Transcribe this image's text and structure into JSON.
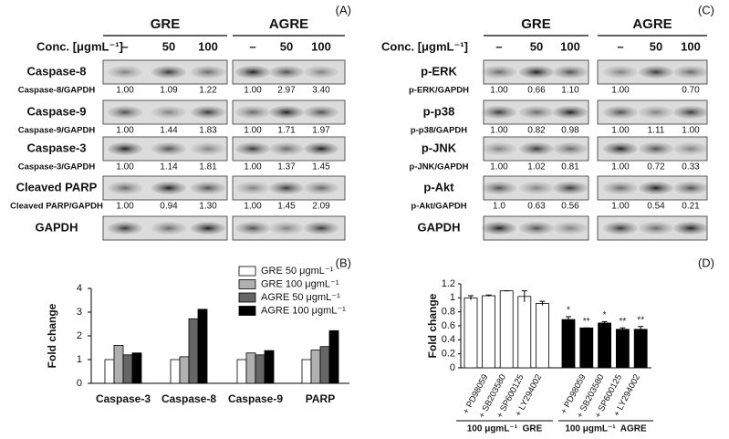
{
  "blots": [
    {
      "panel_label": "(A)",
      "groups": [
        "GRE",
        "AGRE"
      ],
      "conc_label": "Conc. [μgmL⁻¹]",
      "columns": [
        "–",
        "50",
        "100",
        "–",
        "50",
        "100"
      ],
      "rows": [
        {
          "label": "Caspase-8",
          "ratio_label": "Caspase-8/GAPDH",
          "ratios": [
            "1.00",
            "1.09",
            "1.22",
            "1.00",
            "2.97",
            "3.40"
          ]
        },
        {
          "label": "Caspase-9",
          "ratio_label": "Caspase-9/GAPDH",
          "ratios": [
            "1.00",
            "1.44",
            "1.83",
            "1.00",
            "1.71",
            "1.97"
          ]
        },
        {
          "label": "Caspase-3",
          "ratio_label": "Caspase-3/GAPDH",
          "ratios": [
            "1.00",
            "1.14",
            "1.81",
            "1.00",
            "1.37",
            "1.45"
          ]
        },
        {
          "label": "Cleaved PARP",
          "ratio_label": "Cleaved PARP/GAPDH",
          "ratios": [
            "1.00",
            "0.94",
            "1.30",
            "1.00",
            "1.45",
            "2.09"
          ]
        },
        {
          "label": "GAPDH"
        }
      ]
    },
    {
      "panel_label": "(C)",
      "groups": [
        "GRE",
        "AGRE"
      ],
      "conc_label": "Conc. [μgmL⁻¹]",
      "columns": [
        "–",
        "50",
        "100",
        "–",
        "50",
        "100"
      ],
      "rows": [
        {
          "label": "p-ERK",
          "ratio_label": "p-ERK/GAPDH",
          "ratios": [
            "1.00",
            "0.66",
            "1.10",
            "1.00",
            null,
            "0.70"
          ]
        },
        {
          "label": "p-p38",
          "ratio_label": "p-p38/GAPDH",
          "ratios": [
            "1.00",
            "0.82",
            "0.98",
            "1.00",
            "1.11",
            "1.00"
          ]
        },
        {
          "label": "p-JNK",
          "ratio_label": "p-JNK/GAPDH",
          "ratios": [
            "1.00",
            "1.02",
            "0.81",
            "1.00",
            "0.72",
            "0.33"
          ]
        },
        {
          "label": "p-Akt",
          "ratio_label": "p-Akt/GAPDH",
          "ratios": [
            "1.0",
            "0.63",
            "0.56",
            "1.00",
            "0.54",
            "0.21"
          ]
        },
        {
          "label": "GAPDH"
        }
      ]
    }
  ],
  "chart_data": [
    {
      "type": "grouped_bar",
      "panel_label": "(B)",
      "ylabel": "Fold change",
      "categories": [
        "Caspase-3",
        "Caspase-8",
        "Caspase-9",
        "PARP"
      ],
      "series": [
        {
          "name": "GRE 50 μgmL⁻¹",
          "color": "#ffffff",
          "values": [
            1.0,
            1.0,
            1.0,
            1.0
          ]
        },
        {
          "name": "GRE 100 μgmL⁻¹",
          "color": "#b0b0b0",
          "values": [
            1.6,
            1.12,
            1.28,
            1.4
          ]
        },
        {
          "name": "AGRE 50 μgmL⁻¹",
          "color": "#666666",
          "values": [
            1.2,
            2.72,
            1.2,
            1.55
          ]
        },
        {
          "name": "AGRE 100 μgmL⁻¹",
          "color": "#000000",
          "values": [
            1.28,
            3.12,
            1.38,
            2.22
          ]
        }
      ],
      "ylim": [
        0,
        4
      ],
      "yticks": [
        0,
        1,
        2,
        3,
        4
      ],
      "legend": "top-right"
    },
    {
      "type": "error_bar",
      "panel_label": "(D)",
      "ylabel": "Fold change",
      "categories": [
        null,
        "+ PD98059",
        "+ SB203580",
        "+ SP600125",
        "+ LY294002",
        null,
        "+ PD98059",
        "+ SB203580",
        "+ SP600125",
        "+ LY294002"
      ],
      "values": [
        1.0,
        1.03,
        1.1,
        1.02,
        0.92,
        0.69,
        0.57,
        0.64,
        0.55,
        0.55
      ],
      "errors": [
        0.03,
        0.01,
        0.0,
        0.08,
        0.03,
        0.04,
        0.0,
        0.02,
        0.02,
        0.04
      ],
      "colors": [
        "#ffffff",
        "#ffffff",
        "#ffffff",
        "#ffffff",
        "#ffffff",
        "#000000",
        "#000000",
        "#000000",
        "#000000",
        "#000000"
      ],
      "annotations": [
        null,
        null,
        null,
        null,
        null,
        "*",
        "**",
        "*",
        "**",
        "**"
      ],
      "group_labels": [
        "100 μgmL⁻¹  GRE",
        "100 μgmL⁻¹  AGRE"
      ],
      "ylim": [
        0,
        1.2
      ],
      "yticks": [
        0,
        0.2,
        0.4,
        0.6,
        0.8,
        1,
        1.2
      ]
    }
  ]
}
